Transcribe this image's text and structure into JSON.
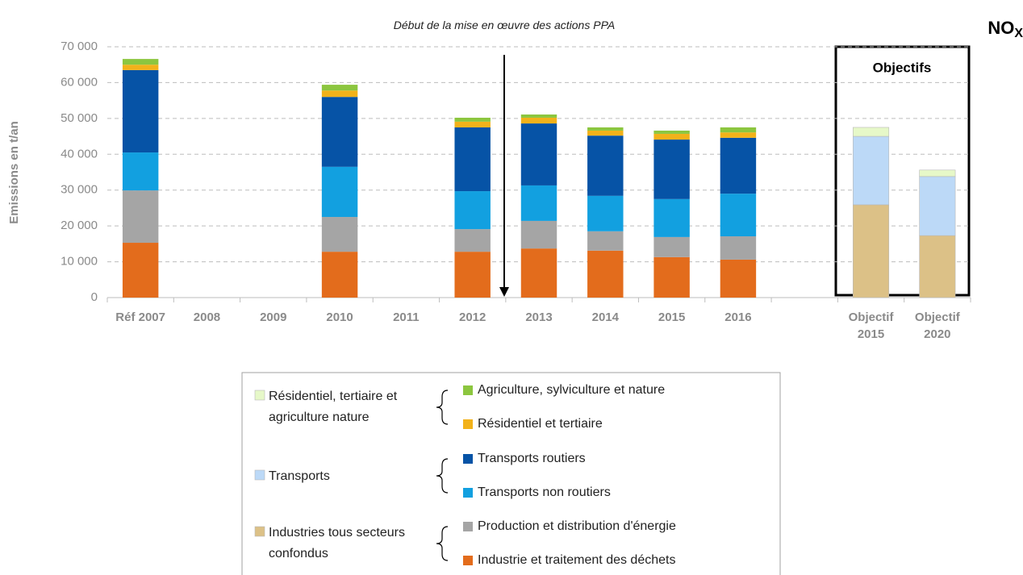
{
  "chart_data": {
    "type": "bar",
    "stacked": true,
    "title": "NO",
    "title_subscript": "X",
    "y_label": "Emissions en t/an",
    "annotation": "Début de la mise en œuvre des actions PPA",
    "box_label": "Objectifs",
    "categories": [
      "Réf 2007",
      "2008",
      "2009",
      "2010",
      "2011",
      "2012",
      "2013",
      "2014",
      "2015",
      "2016",
      null,
      "Objectif 2015",
      "Objectif 2020"
    ],
    "ylim": [
      0,
      70000
    ],
    "yticks": [
      0,
      {
        "value": 10000,
        "label": "10 000"
      },
      {
        "value": 20000,
        "label": "20 000"
      },
      {
        "value": 30000,
        "label": "30 000"
      },
      {
        "value": 40000,
        "label": "40 000"
      },
      {
        "value": 50000,
        "label": "50 000"
      },
      {
        "value": 60000,
        "label": "60 000"
      },
      {
        "value": 70000,
        "label": "70 000"
      }
    ],
    "grid": true,
    "series": [
      {
        "name": "Industrie et traitement des déchets",
        "color": "#e36c1c",
        "values": [
          15300,
          null,
          null,
          12800,
          null,
          12800,
          13700,
          13100,
          11300,
          10600,
          null,
          null,
          null
        ]
      },
      {
        "name": "Production et distribution d'énergie",
        "color": "#a5a5a5",
        "values": [
          14600,
          null,
          null,
          9700,
          null,
          6300,
          7700,
          5400,
          5600,
          6500,
          null,
          null,
          null
        ]
      },
      {
        "name": "Transports non routiers",
        "color": "#12a0e0",
        "values": [
          10600,
          null,
          null,
          14000,
          null,
          10600,
          9900,
          9900,
          10600,
          11900,
          null,
          null,
          null
        ]
      },
      {
        "name": "Transports routiers",
        "color": "#0653a6",
        "values": [
          23000,
          null,
          null,
          19500,
          null,
          17800,
          17300,
          16800,
          16600,
          15600,
          null,
          null,
          null
        ]
      },
      {
        "name": "Résidentiel et tertiaire",
        "color": "#f2b21a",
        "values": [
          1500,
          null,
          null,
          1800,
          null,
          1600,
          1600,
          1400,
          1600,
          1500,
          null,
          null,
          null
        ]
      },
      {
        "name": "Agriculture, sylviculture et nature",
        "color": "#8cc63f",
        "values": [
          1600,
          null,
          null,
          1600,
          null,
          1100,
          900,
          900,
          900,
          1400,
          null,
          null,
          null
        ]
      },
      {
        "name": "Industries tous secteurs confondus",
        "color": "#dcc187",
        "values": [
          null,
          null,
          null,
          null,
          null,
          null,
          null,
          null,
          null,
          null,
          null,
          25900,
          17300
        ]
      },
      {
        "name": "Transports",
        "color": "#bcd9f7",
        "values": [
          null,
          null,
          null,
          null,
          null,
          null,
          null,
          null,
          null,
          null,
          null,
          19100,
          16500
        ]
      },
      {
        "name": "Résidentiel, tertiaire et agriculture nature",
        "color": "#e6f8c8",
        "values": [
          null,
          null,
          null,
          null,
          null,
          null,
          null,
          null,
          null,
          null,
          null,
          2500,
          1800
        ]
      }
    ]
  }
}
